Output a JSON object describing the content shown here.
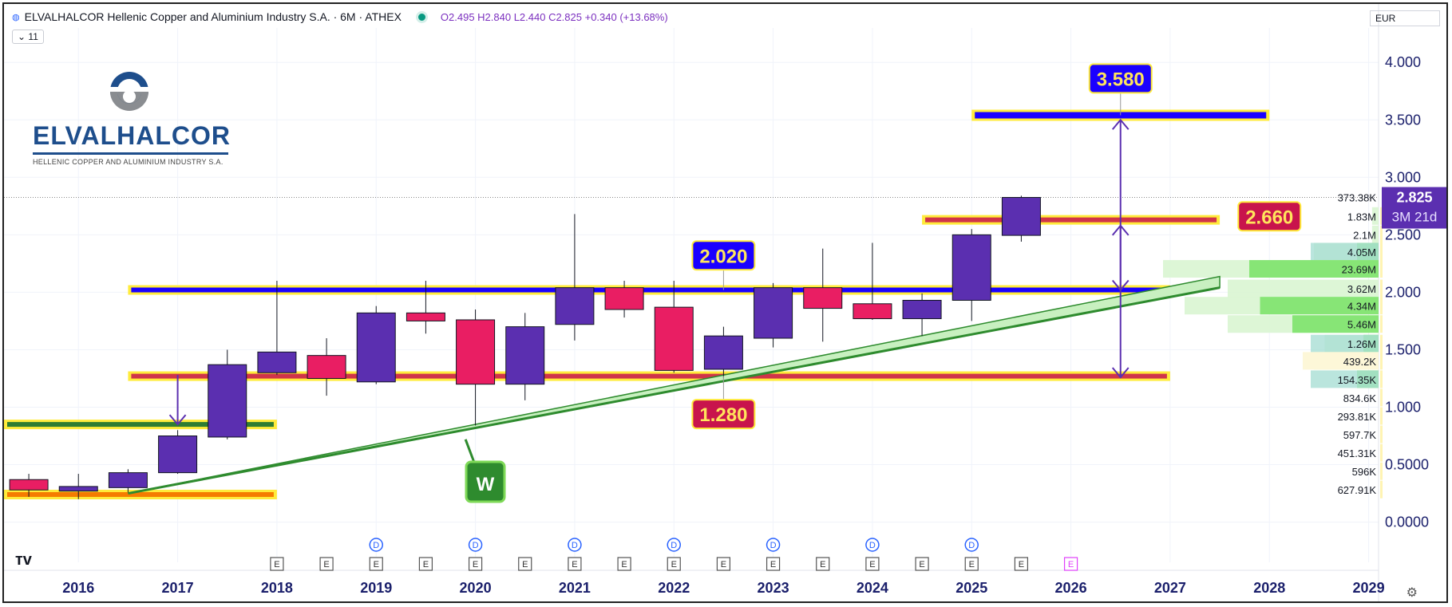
{
  "header": {
    "symbol_icon": "globe-icon",
    "title": "ELVALHALCOR Hellenic Copper and Aluminium Industry S.A. · 6M · ATHEX",
    "ohlc": "O2.495 H2.840 L2.440 C2.825 +0.340 (+13.68%)",
    "indicator_count": "11",
    "currency": "EUR"
  },
  "logo": {
    "name": "ELVALHALCOR",
    "subtitle": "HELLENIC COPPER AND ALUMINIUM INDUSTRY S.A."
  },
  "colors": {
    "bull": "#5b2fb0",
    "bear": "#e91e63",
    "trend": "#2e8b2e",
    "trend_fill": "#c8f0c0",
    "box_border": "#ffeb3b",
    "blue_label": "#1a00ff",
    "red_label": "#c8144c",
    "price_tag": "#5b2fb0",
    "arrow": "#5b2fb0"
  },
  "chart_data": {
    "type": "candlestick",
    "interval": "6M",
    "y_axis": {
      "ticks": [
        "4.000",
        "3.500",
        "3.000",
        "2.500",
        "2.000",
        "1.500",
        "1.000",
        "0.5000",
        "0.0000"
      ],
      "tick_values": [
        4.0,
        3.5,
        3.0,
        2.5,
        2.0,
        1.5,
        1.0,
        0.5,
        0.0
      ],
      "range": [
        -0.35,
        4.3
      ]
    },
    "x_axis": {
      "labels": [
        "2016",
        "2017",
        "2018",
        "2019",
        "2020",
        "2021",
        "2022",
        "2023",
        "2024",
        "2025",
        "2026",
        "2027",
        "2028",
        "2029"
      ],
      "range": [
        2015.25,
        2029.1
      ]
    },
    "candles": [
      {
        "t": 2015.5,
        "o": 0.37,
        "h": 0.42,
        "l": 0.22,
        "c": 0.28
      },
      {
        "t": 2016.0,
        "o": 0.27,
        "h": 0.42,
        "l": 0.2,
        "c": 0.31
      },
      {
        "t": 2016.5,
        "o": 0.3,
        "h": 0.46,
        "l": 0.26,
        "c": 0.43
      },
      {
        "t": 2017.0,
        "o": 0.43,
        "h": 0.8,
        "l": 0.42,
        "c": 0.75
      },
      {
        "t": 2017.5,
        "o": 0.74,
        "h": 1.5,
        "l": 0.72,
        "c": 1.37
      },
      {
        "t": 2018.0,
        "o": 1.3,
        "h": 2.1,
        "l": 1.28,
        "c": 1.48
      },
      {
        "t": 2018.5,
        "o": 1.45,
        "h": 1.6,
        "l": 1.1,
        "c": 1.25
      },
      {
        "t": 2019.0,
        "o": 1.22,
        "h": 1.88,
        "l": 1.2,
        "c": 1.82
      },
      {
        "t": 2019.5,
        "o": 1.82,
        "h": 2.1,
        "l": 1.64,
        "c": 1.75
      },
      {
        "t": 2020.0,
        "o": 1.76,
        "h": 1.85,
        "l": 0.84,
        "c": 1.2
      },
      {
        "t": 2020.5,
        "o": 1.2,
        "h": 1.82,
        "l": 1.06,
        "c": 1.7
      },
      {
        "t": 2021.0,
        "o": 1.72,
        "h": 2.68,
        "l": 1.58,
        "c": 2.04
      },
      {
        "t": 2021.5,
        "o": 2.04,
        "h": 2.1,
        "l": 1.78,
        "c": 1.85
      },
      {
        "t": 2022.0,
        "o": 1.87,
        "h": 2.1,
        "l": 1.3,
        "c": 1.32
      },
      {
        "t": 2022.5,
        "o": 1.33,
        "h": 1.7,
        "l": 1.25,
        "c": 1.62
      },
      {
        "t": 2023.0,
        "o": 1.6,
        "h": 2.08,
        "l": 1.52,
        "c": 2.04
      },
      {
        "t": 2023.5,
        "o": 2.04,
        "h": 2.38,
        "l": 1.57,
        "c": 1.86
      },
      {
        "t": 2024.0,
        "o": 1.9,
        "h": 2.43,
        "l": 1.76,
        "c": 1.77
      },
      {
        "t": 2024.5,
        "o": 1.77,
        "h": 1.99,
        "l": 1.62,
        "c": 1.93
      },
      {
        "t": 2025.0,
        "o": 1.93,
        "h": 2.55,
        "l": 1.75,
        "c": 2.5
      },
      {
        "t": 2025.5,
        "o": 2.495,
        "h": 2.84,
        "l": 2.44,
        "c": 2.825
      }
    ],
    "levels": [
      {
        "label": "3.580",
        "value": 3.58,
        "y_bar": 3.54,
        "t0": 2025.0,
        "t1": 2028.0,
        "bar": "blue",
        "label_t": 2026.5,
        "label_color": "blue"
      },
      {
        "label": "2.660",
        "value": 2.66,
        "y_bar": 2.63,
        "t0": 2024.5,
        "t1": 2027.5,
        "bar": "red",
        "label_t": 2028.0,
        "label_color": "red"
      },
      {
        "label": "2.020",
        "value": 2.02,
        "y_bar": 2.02,
        "t0": 2016.5,
        "t1": 2027.0,
        "bar": "blue",
        "label_t": 2022.5,
        "label_color": "blue"
      },
      {
        "label": "1.280",
        "value": 1.28,
        "y_bar": 1.27,
        "t0": 2016.5,
        "t1": 2027.0,
        "bar": "red",
        "label_t": 2022.5,
        "label_color": "red"
      },
      {
        "label": "",
        "value": 0.85,
        "y_bar": 0.85,
        "t0": 2015.25,
        "t1": 2018.0,
        "bar": "green"
      },
      {
        "label": "",
        "value": 0.25,
        "y_bar": 0.24,
        "t0": 2015.25,
        "t1": 2018.0,
        "bar": "orange"
      }
    ],
    "trendline": {
      "label": "W",
      "t0": 2016.5,
      "v0": 0.25,
      "t1": 2027.5,
      "v1": 2.04,
      "label_t": 2020.1,
      "label_v": 0.33
    },
    "arrows": [
      {
        "t": 2017.0,
        "from": 1.28,
        "to": 0.85
      },
      {
        "t": 2026.5,
        "from": 2.63,
        "to": 3.5
      },
      {
        "t": 2026.5,
        "from": 2.63,
        "to": 2.02
      },
      {
        "t": 2026.5,
        "from": 2.02,
        "to": 2.58
      },
      {
        "t": 2026.5,
        "from": 2.02,
        "to": 1.26
      }
    ],
    "price_tag": {
      "value": "2.825",
      "countdown": "3M 21d",
      "v": 2.825
    },
    "volume_profile": [
      {
        "v": 2.825,
        "label": "373.38K",
        "w": 0.0,
        "hl": 0.0
      },
      {
        "v": 2.66,
        "label": "1.83M",
        "w": 0.03,
        "hl": 0.0
      },
      {
        "v": 2.5,
        "label": "2.1M",
        "w": 0.03,
        "hl": 0.0
      },
      {
        "v": 2.35,
        "label": "4.05M",
        "w": 0.3,
        "hl": 0.1
      },
      {
        "v": 2.2,
        "label": "23.69M",
        "w": 1.0,
        "hl": 0.6
      },
      {
        "v": 2.03,
        "label": "3.62M",
        "w": 0.7,
        "hl": 0.0
      },
      {
        "v": 1.88,
        "label": "4.34M",
        "w": 0.9,
        "hl": 0.55
      },
      {
        "v": 1.72,
        "label": "5.46M",
        "w": 0.7,
        "hl": 0.4
      },
      {
        "v": 1.55,
        "label": "1.26M",
        "w": 0.25,
        "hl": 0.07
      },
      {
        "v": 1.4,
        "label": "439.2K",
        "w": 0.3,
        "hl": 0.0
      },
      {
        "v": 1.24,
        "label": "154.35K",
        "w": 0.1,
        "hl": 0.1
      },
      {
        "v": 1.08,
        "label": "834.6K",
        "w": 0.0,
        "hl": 0.0
      },
      {
        "v": 0.92,
        "label": "293.81K",
        "w": 0.0,
        "hl": 0.0
      },
      {
        "v": 0.76,
        "label": "597.7K",
        "w": 0.0,
        "hl": 0.0
      },
      {
        "v": 0.6,
        "label": "451.31K",
        "w": 0.0,
        "hl": 0.0
      },
      {
        "v": 0.44,
        "label": "596K",
        "w": 0.0,
        "hl": 0.0
      },
      {
        "v": 0.28,
        "label": "627.91K",
        "w": 0.0,
        "hl": 0.0
      }
    ],
    "dividend_markers": {
      "label": "D",
      "t": [
        2019.0,
        2020.0,
        2021.0,
        2022.0,
        2023.0,
        2024.0,
        2025.0
      ]
    },
    "earnings_markers": {
      "label": "E",
      "t": [
        2018.0,
        2018.5,
        2019.0,
        2019.5,
        2020.0,
        2020.5,
        2021.0,
        2021.5,
        2022.0,
        2022.5,
        2023.0,
        2023.5,
        2024.0,
        2024.5,
        2025.0,
        2025.5
      ],
      "future_t": [
        2026.0
      ]
    }
  }
}
